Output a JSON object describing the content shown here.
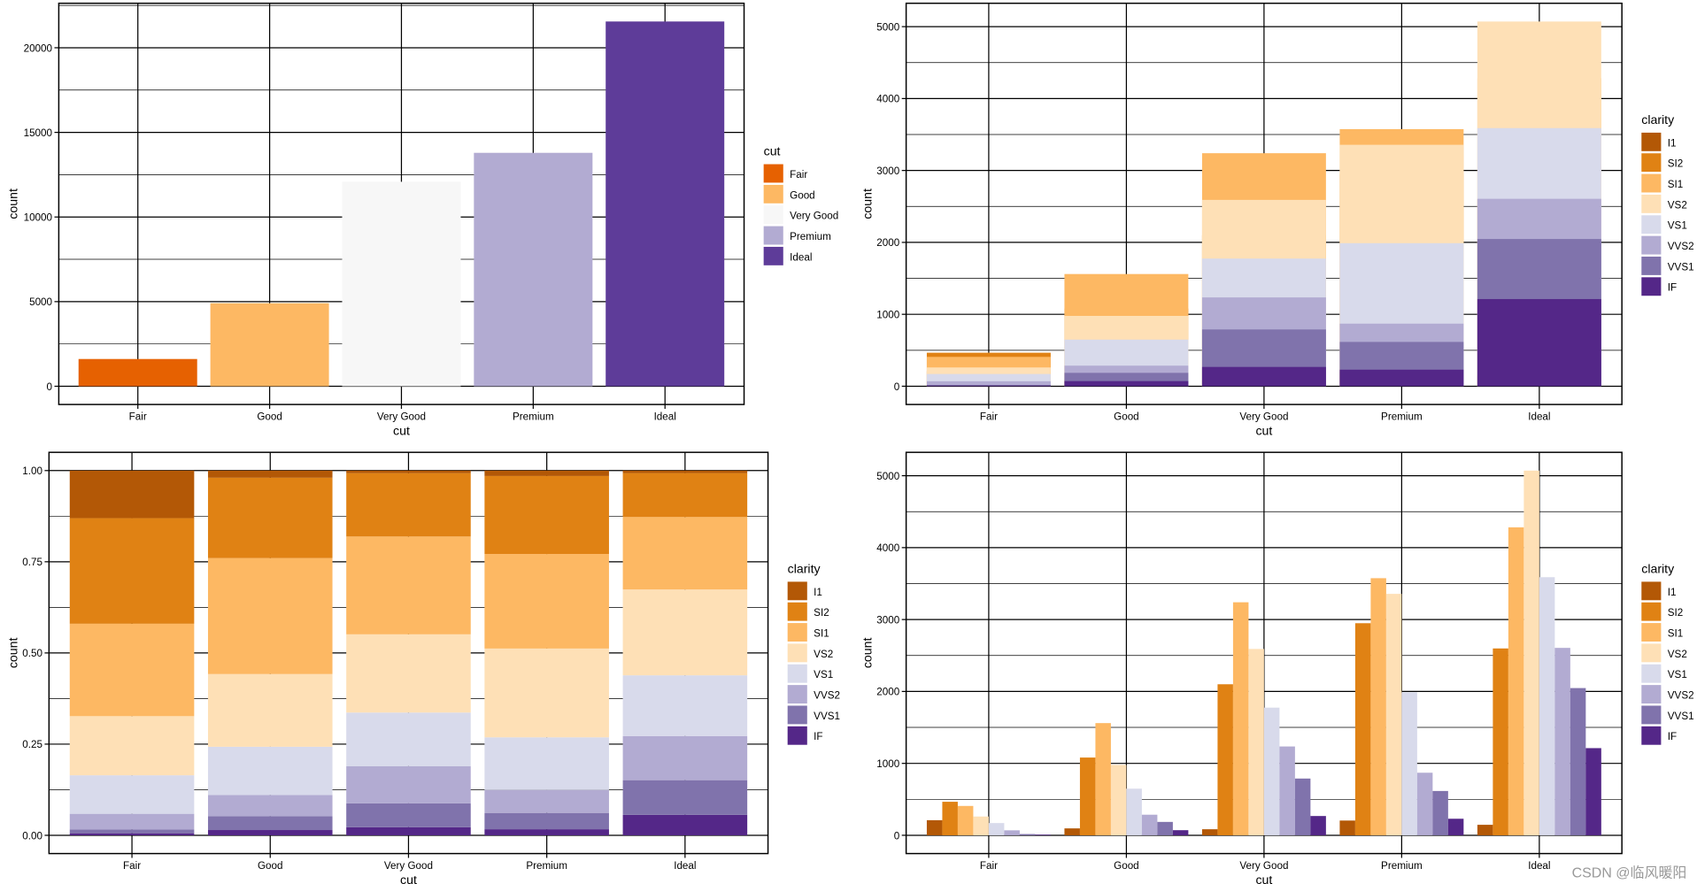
{
  "palettes": {
    "cut": [
      "#e66101",
      "#fdb863",
      "#f7f7f7",
      "#b2abd2",
      "#5e3c99"
    ],
    "clarity": [
      "#b35806",
      "#e08214",
      "#fdb863",
      "#fee0b6",
      "#d8daeb",
      "#b2abd2",
      "#8073ac",
      "#542788"
    ]
  },
  "watermark": "CSDN @临风暖阳",
  "chart_data": [
    {
      "type": "bar",
      "position": "identity",
      "xlabel": "cut",
      "ylabel": "count",
      "categories": [
        "Fair",
        "Good",
        "Very Good",
        "Premium",
        "Ideal"
      ],
      "values": [
        1610,
        4906,
        12082,
        13791,
        21551
      ],
      "ylim": [
        -1077,
        22628
      ],
      "yticks": [
        0,
        5000,
        10000,
        15000,
        20000
      ],
      "ytick_labels": [
        "0",
        "5000",
        "10000",
        "15000",
        "20000"
      ],
      "grid": true,
      "legend": {
        "title": "cut",
        "placement": "right",
        "entries": [
          "Fair",
          "Good",
          "Very Good",
          "Premium",
          "Ideal"
        ],
        "palette": "cut"
      }
    },
    {
      "type": "bar",
      "position": "identity",
      "xlabel": "cut",
      "ylabel": "count",
      "categories": [
        "Fair",
        "Good",
        "Very Good",
        "Premium",
        "Ideal"
      ],
      "series": [
        {
          "name": "I1",
          "values": [
            210,
            96,
            84,
            205,
            146
          ]
        },
        {
          "name": "SI2",
          "values": [
            466,
            1081,
            2100,
            2949,
            2598
          ]
        },
        {
          "name": "SI1",
          "values": [
            408,
            1560,
            3240,
            3575,
            4282
          ]
        },
        {
          "name": "VS2",
          "values": [
            261,
            978,
            2591,
            3357,
            5071
          ]
        },
        {
          "name": "VS1",
          "values": [
            170,
            648,
            1775,
            1989,
            3589
          ]
        },
        {
          "name": "VVS2",
          "values": [
            69,
            286,
            1235,
            870,
            2606
          ]
        },
        {
          "name": "VVS1",
          "values": [
            17,
            186,
            789,
            616,
            2047
          ]
        },
        {
          "name": "IF",
          "values": [
            9,
            71,
            268,
            230,
            1212
          ]
        }
      ],
      "ylim": [
        -254,
        5325
      ],
      "yticks": [
        0,
        1000,
        2000,
        3000,
        4000,
        5000
      ],
      "ytick_labels": [
        "0",
        "1000",
        "2000",
        "3000",
        "4000",
        "5000"
      ],
      "grid": true,
      "legend": {
        "title": "clarity",
        "placement": "right",
        "palette": "clarity"
      }
    },
    {
      "type": "bar",
      "position": "fill",
      "xlabel": "cut",
      "ylabel": "count",
      "categories": [
        "Fair",
        "Good",
        "Very Good",
        "Premium",
        "Ideal"
      ],
      "series_ref": "same counts as panel 2, normalized to proportions",
      "ylim": [
        -0.05,
        1.05
      ],
      "yticks": [
        0,
        0.25,
        0.5,
        0.75,
        1
      ],
      "ytick_labels": [
        "0.00",
        "0.25",
        "0.50",
        "0.75",
        "1.00"
      ],
      "grid": true,
      "legend": {
        "title": "clarity",
        "placement": "right",
        "palette": "clarity"
      }
    },
    {
      "type": "bar",
      "position": "dodge",
      "xlabel": "cut",
      "ylabel": "count",
      "categories": [
        "Fair",
        "Good",
        "Very Good",
        "Premium",
        "Ideal"
      ],
      "series_ref": "same counts as panel 2",
      "ylim": [
        -254,
        5325
      ],
      "yticks": [
        0,
        1000,
        2000,
        3000,
        4000,
        5000
      ],
      "ytick_labels": [
        "0",
        "1000",
        "2000",
        "3000",
        "4000",
        "5000"
      ],
      "grid": true,
      "legend": {
        "title": "clarity",
        "placement": "right",
        "palette": "clarity"
      }
    }
  ]
}
